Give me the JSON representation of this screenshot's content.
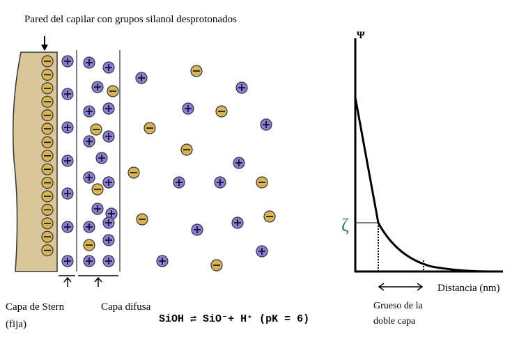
{
  "title": "Pared del capilar con grupos silanol desprotonados",
  "labels": {
    "stern": "Capa de Stern",
    "stern_note": "(fija)",
    "diffuse": "Capa difusa"
  },
  "graph": {
    "y_axis": "Ψ",
    "zeta": "ζ",
    "x_axis": "Distancia (nm)",
    "thickness_line1": "Grueso de la",
    "thickness_line2": "doble capa"
  },
  "equation": "SiOH ⇌ SiO⁻+ H⁺ (pK = 6)"
}
